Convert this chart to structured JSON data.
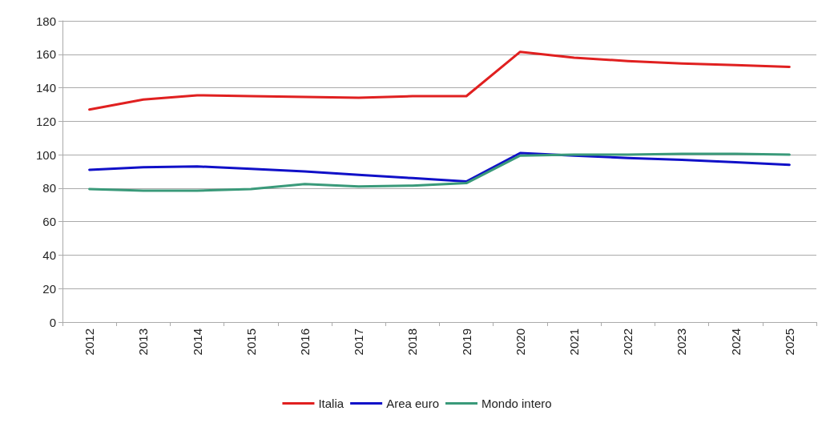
{
  "chart_data": {
    "type": "line",
    "categories": [
      "2012",
      "2013",
      "2014",
      "2015",
      "2016",
      "2017",
      "2018",
      "2019",
      "2020",
      "2021",
      "2022",
      "2023",
      "2024",
      "2025"
    ],
    "series": [
      {
        "name": "Italia",
        "color": "#e02020",
        "values": [
          127,
          133,
          135.5,
          135,
          134.5,
          134,
          135,
          135,
          161.5,
          158,
          156,
          154.5,
          153.5,
          152.5
        ]
      },
      {
        "name": "Area euro",
        "color": "#1010c8",
        "values": [
          91,
          92.5,
          93,
          91.5,
          90,
          88,
          86,
          84,
          101,
          99.5,
          98,
          97,
          95.5,
          94
        ]
      },
      {
        "name": "Mondo intero",
        "color": "#3a9a7a",
        "values": [
          79.5,
          78.5,
          78.5,
          79.5,
          82.5,
          81,
          81.5,
          83,
          99.5,
          100,
          100,
          100.5,
          100.5,
          100
        ]
      }
    ],
    "ylim": [
      0,
      180
    ],
    "yticks": [
      0,
      20,
      40,
      60,
      80,
      100,
      120,
      140,
      160,
      180
    ],
    "grid": "y",
    "legend": "bottom",
    "marker": "none",
    "line_style": "solid"
  }
}
